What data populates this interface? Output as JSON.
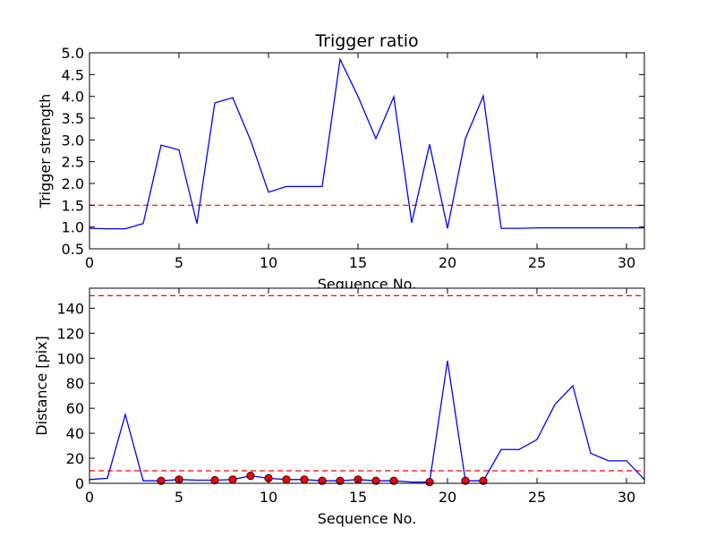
{
  "colors": {
    "line": "#0000ff",
    "threshold": "#ff0000",
    "marker_fill": "#ff0000",
    "marker_edge": "#000000",
    "axes": "#000000",
    "background": "#ffffff"
  },
  "chart_data": [
    {
      "type": "line",
      "title": "Trigger ratio",
      "xlabel": "Sequence No.",
      "ylabel": "Trigger strength",
      "xlim": [
        0,
        31
      ],
      "ylim": [
        0.5,
        5.0
      ],
      "xticks": [
        "0",
        "5",
        "10",
        "15",
        "20",
        "25",
        "30"
      ],
      "yticks": [
        "0.5",
        "1.0",
        "1.5",
        "2.0",
        "2.5",
        "3.0",
        "3.5",
        "4.0",
        "4.5",
        "5.0"
      ],
      "grid": false,
      "series": [
        {
          "x": [
            0,
            1,
            2,
            3,
            4,
            5,
            6,
            7,
            8,
            9,
            10,
            11,
            12,
            13,
            14,
            15,
            16,
            17,
            18,
            19,
            20,
            21,
            22,
            23,
            24,
            25,
            26,
            27,
            28,
            29,
            30,
            31
          ],
          "values": [
            0.97,
            0.96,
            0.96,
            1.08,
            2.88,
            2.77,
            1.08,
            3.85,
            3.97,
            2.99,
            1.8,
            1.93,
            1.93,
            1.93,
            4.85,
            4.0,
            3.03,
            3.99,
            1.1,
            2.9,
            0.97,
            3.03,
            4.01,
            0.97,
            0.97,
            0.98,
            0.98,
            0.98,
            0.98,
            0.98,
            0.98,
            0.98
          ]
        }
      ],
      "hlines": [
        1.5
      ]
    },
    {
      "type": "line",
      "title": "",
      "xlabel": "Sequence No.",
      "ylabel": "Distance [pix]",
      "xlim": [
        0,
        31
      ],
      "ylim": [
        0,
        156
      ],
      "xticks": [
        "0",
        "5",
        "10",
        "15",
        "20",
        "25",
        "30"
      ],
      "yticks": [
        "0",
        "20",
        "40",
        "60",
        "80",
        "100",
        "120",
        "140"
      ],
      "grid": false,
      "series": [
        {
          "x": [
            0,
            1,
            2,
            3,
            4,
            5,
            6,
            7,
            8,
            9,
            10,
            11,
            12,
            13,
            14,
            15,
            16,
            17,
            18,
            19,
            20,
            21,
            22,
            23,
            24,
            25,
            26,
            27,
            28,
            29,
            30,
            31
          ],
          "values": [
            3,
            4,
            55,
            2,
            2,
            3,
            2.5,
            2.5,
            3,
            6,
            4,
            3,
            3,
            2,
            2,
            3,
            2,
            2,
            1,
            1,
            98,
            2,
            2,
            27,
            27,
            35,
            63,
            78,
            24,
            18,
            18,
            3
          ]
        }
      ],
      "markers": {
        "x": [
          4,
          5,
          7,
          8,
          9,
          10,
          11,
          12,
          13,
          14,
          15,
          16,
          17,
          19,
          21,
          22
        ],
        "values": [
          2,
          3,
          2.5,
          3,
          6,
          4,
          3,
          3,
          2,
          2,
          3,
          2,
          2,
          1,
          2,
          2
        ]
      },
      "hlines": [
        10,
        150
      ]
    }
  ]
}
